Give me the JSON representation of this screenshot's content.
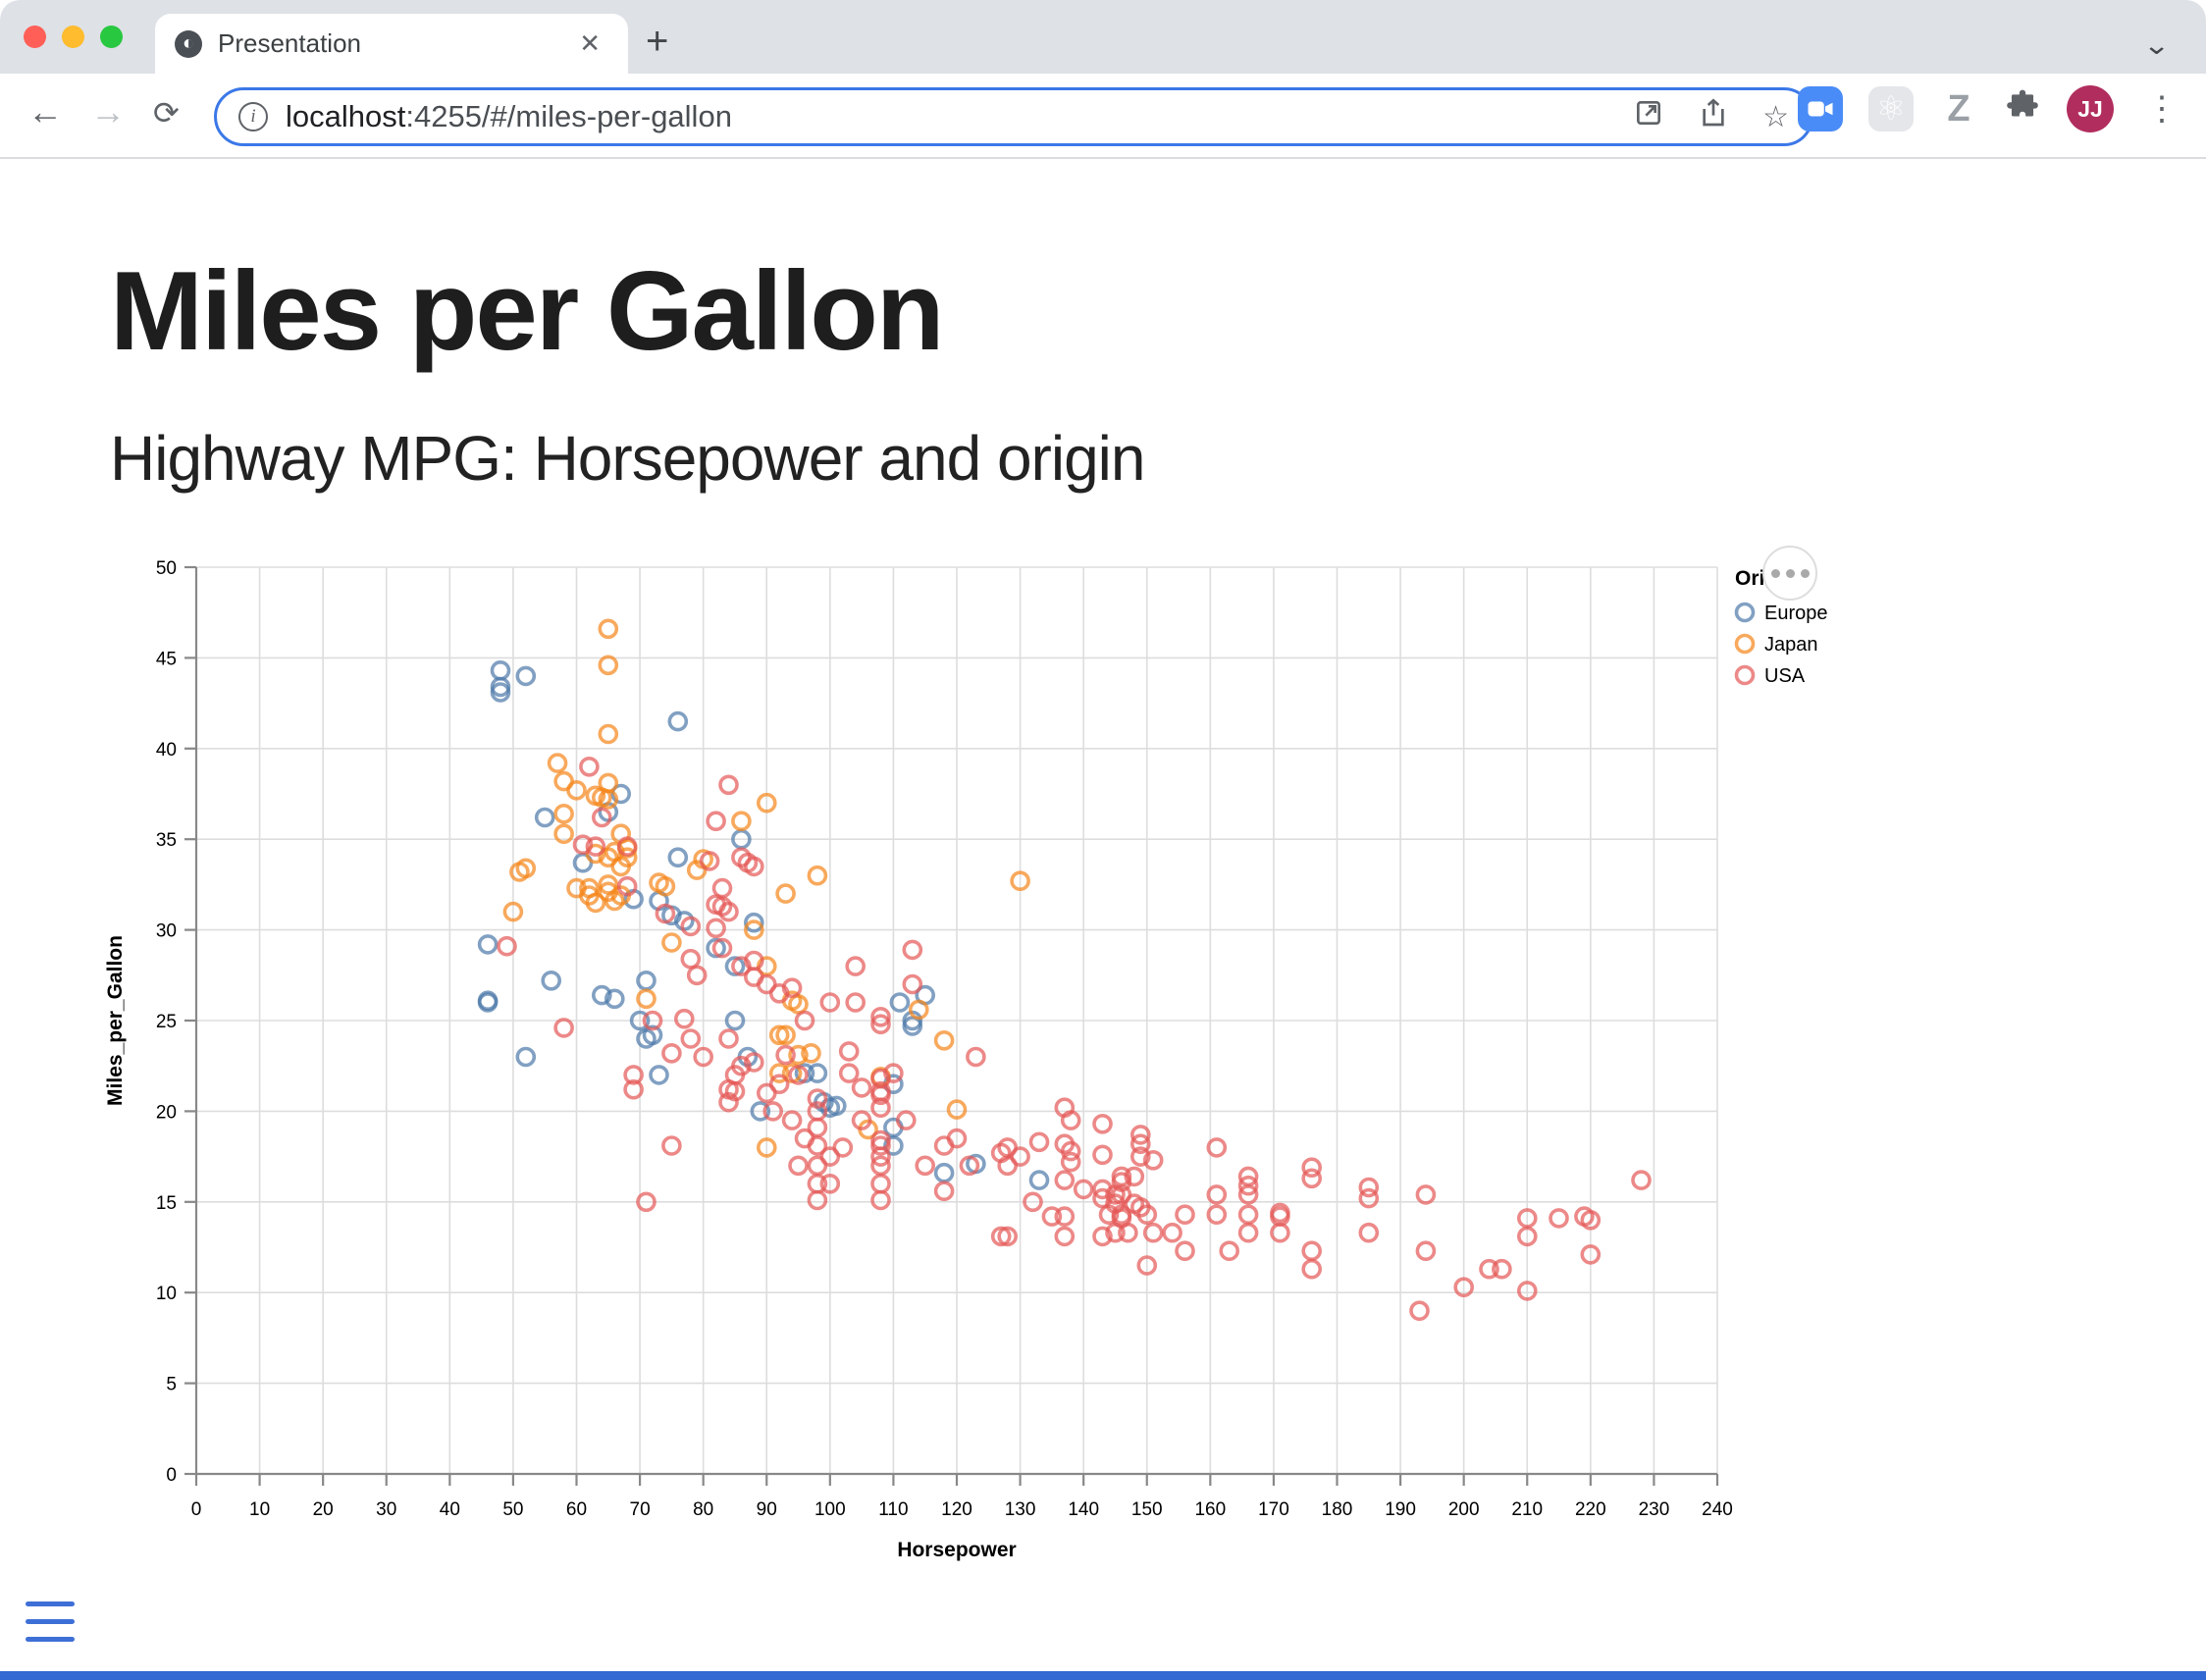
{
  "browser": {
    "traffic_lights": [
      "close",
      "minimize",
      "zoom"
    ],
    "tab": {
      "title": "Presentation",
      "favicon": "globe-icon",
      "close_label": "✕"
    },
    "new_tab_label": "+",
    "strip_chevron": "⌄",
    "nav": {
      "back": "←",
      "forward": "→",
      "reload": "⟳"
    },
    "url": {
      "host": "localhost",
      "rest": ":4255/#/miles-per-gallon",
      "info_glyph": "i"
    },
    "pill_icons": [
      "open-in-window-icon",
      "share-icon",
      "bookmark-star-icon"
    ],
    "star_glyph": "☆",
    "ext_icons": [
      "zoom-camera-icon",
      "react-atom-icon",
      "z-extension-icon",
      "puzzle-icon",
      "avatar",
      "kebab-menu-icon"
    ],
    "react_glyph": "⚛",
    "z_label": "Z",
    "avatar_initials": "JJ",
    "kebab_glyph": "⋮"
  },
  "page": {
    "title": "Miles per Gallon",
    "subtitle": "Highway MPG: Horsepower and origin"
  },
  "chart_data": {
    "type": "scatter",
    "xlabel": "Horsepower",
    "ylabel": "Miles_per_Gallon",
    "xlim": [
      0,
      240
    ],
    "ylim": [
      0,
      50
    ],
    "x_ticks": [
      0,
      10,
      20,
      30,
      40,
      50,
      60,
      70,
      80,
      90,
      100,
      110,
      120,
      130,
      140,
      150,
      160,
      170,
      180,
      190,
      200,
      210,
      220,
      230,
      240
    ],
    "y_ticks": [
      0,
      5,
      10,
      15,
      20,
      25,
      30,
      35,
      40,
      45,
      50
    ],
    "grid": true,
    "marker": {
      "shape": "open-circle",
      "radius": 8.5,
      "stroke_width": 3.6,
      "opacity": 0.7
    },
    "legend": {
      "title": "Origin",
      "position": "right"
    },
    "series": [
      {
        "name": "Europe",
        "color": "#4c78a8",
        "points": [
          [
            48,
            44.3
          ],
          [
            48,
            43.4
          ],
          [
            48,
            43.1
          ],
          [
            52,
            44.0
          ],
          [
            76,
            41.5
          ],
          [
            67,
            37.5
          ],
          [
            65,
            36.5
          ],
          [
            55,
            36.2
          ],
          [
            76,
            34.0
          ],
          [
            86,
            35.0
          ],
          [
            69,
            31.7
          ],
          [
            73,
            31.6
          ],
          [
            75,
            30.8
          ],
          [
            77,
            30.5
          ],
          [
            61,
            33.7
          ],
          [
            46,
            29.2
          ],
          [
            46,
            26.1
          ],
          [
            46,
            26.0
          ],
          [
            56,
            27.2
          ],
          [
            71,
            27.2
          ],
          [
            64,
            26.4
          ],
          [
            66,
            26.2
          ],
          [
            82,
            29.0
          ],
          [
            85,
            28.0
          ],
          [
            88,
            30.4
          ],
          [
            52,
            23.0
          ],
          [
            70,
            25.0
          ],
          [
            72,
            24.2
          ],
          [
            71,
            24.0
          ],
          [
            73,
            22.0
          ],
          [
            85,
            25.0
          ],
          [
            87,
            23.0
          ],
          [
            96,
            22.1
          ],
          [
            98,
            22.1
          ],
          [
            100,
            20.2
          ],
          [
            89,
            20.0
          ],
          [
            110,
            21.5
          ],
          [
            99,
            20.5
          ],
          [
            101,
            20.3
          ],
          [
            110,
            19.1
          ],
          [
            110,
            18.1
          ],
          [
            113,
            24.7
          ],
          [
            111,
            26.0
          ],
          [
            113,
            25.0
          ],
          [
            115,
            26.4
          ],
          [
            118,
            16.6
          ],
          [
            123,
            17.1
          ],
          [
            133,
            16.2
          ]
        ]
      },
      {
        "name": "Japan",
        "color": "#f58518",
        "points": [
          [
            65,
            46.6
          ],
          [
            65,
            44.6
          ],
          [
            65,
            40.8
          ],
          [
            57,
            39.2
          ],
          [
            58,
            38.2
          ],
          [
            60,
            37.7
          ],
          [
            65,
            38.1
          ],
          [
            65,
            37.2
          ],
          [
            63,
            37.4
          ],
          [
            64,
            37.3
          ],
          [
            90,
            37.0
          ],
          [
            86,
            36.0
          ],
          [
            58,
            36.4
          ],
          [
            58,
            35.3
          ],
          [
            67,
            35.3
          ],
          [
            63,
            34.2
          ],
          [
            65,
            34.0
          ],
          [
            66,
            34.3
          ],
          [
            68,
            34.5
          ],
          [
            68,
            34.0
          ],
          [
            67,
            33.5
          ],
          [
            80,
            33.9
          ],
          [
            79,
            33.3
          ],
          [
            51,
            33.2
          ],
          [
            52,
            33.4
          ],
          [
            98,
            33.0
          ],
          [
            93,
            32.0
          ],
          [
            130,
            32.7
          ],
          [
            60,
            32.3
          ],
          [
            62,
            32.3
          ],
          [
            62,
            31.9
          ],
          [
            63,
            31.5
          ],
          [
            65,
            32.5
          ],
          [
            65,
            32.1
          ],
          [
            66,
            31.6
          ],
          [
            67,
            31.9
          ],
          [
            73,
            32.6
          ],
          [
            74,
            32.4
          ],
          [
            50,
            31.0
          ],
          [
            88,
            30.0
          ],
          [
            75,
            29.3
          ],
          [
            90,
            28.0
          ],
          [
            71,
            26.2
          ],
          [
            94,
            26.1
          ],
          [
            95,
            25.9
          ],
          [
            92,
            24.2
          ],
          [
            93,
            24.2
          ],
          [
            95,
            23.1
          ],
          [
            92,
            22.1
          ],
          [
            94,
            22.1
          ],
          [
            108,
            21.9
          ],
          [
            90,
            18.0
          ],
          [
            106,
            19.0
          ],
          [
            114,
            25.6
          ],
          [
            118,
            23.9
          ],
          [
            120,
            20.1
          ],
          [
            97,
            23.2
          ]
        ]
      },
      {
        "name": "USA",
        "color": "#e45756",
        "points": [
          [
            62,
            39.0
          ],
          [
            84,
            38.0
          ],
          [
            82,
            36.0
          ],
          [
            64,
            36.2
          ],
          [
            86,
            34.0
          ],
          [
            88,
            33.5
          ],
          [
            61,
            34.7
          ],
          [
            63,
            34.6
          ],
          [
            68,
            34.6
          ],
          [
            81,
            33.8
          ],
          [
            87,
            33.7
          ],
          [
            68,
            32.4
          ],
          [
            83,
            32.3
          ],
          [
            82,
            31.4
          ],
          [
            83,
            31.3
          ],
          [
            84,
            31.0
          ],
          [
            82,
            30.1
          ],
          [
            74,
            30.9
          ],
          [
            78,
            30.2
          ],
          [
            49,
            29.1
          ],
          [
            83,
            29.0
          ],
          [
            78,
            28.4
          ],
          [
            86,
            28.0
          ],
          [
            88,
            28.3
          ],
          [
            88,
            27.4
          ],
          [
            79,
            27.5
          ],
          [
            94,
            26.8
          ],
          [
            100,
            26.0
          ],
          [
            104,
            28.0
          ],
          [
            104,
            26.0
          ],
          [
            113,
            28.9
          ],
          [
            113,
            27.0
          ],
          [
            108,
            25.2
          ],
          [
            96,
            25.0
          ],
          [
            90,
            27.0
          ],
          [
            92,
            26.5
          ],
          [
            58,
            24.6
          ],
          [
            72,
            25.0
          ],
          [
            77,
            25.1
          ],
          [
            78,
            24.0
          ],
          [
            75,
            23.2
          ],
          [
            80,
            23.0
          ],
          [
            69,
            22.0
          ],
          [
            69,
            21.2
          ],
          [
            75,
            18.1
          ],
          [
            71,
            15.0
          ],
          [
            84,
            24.0
          ],
          [
            85,
            22.0
          ],
          [
            86,
            22.5
          ],
          [
            88,
            22.7
          ],
          [
            93,
            23.1
          ],
          [
            95,
            22.0
          ],
          [
            103,
            23.3
          ],
          [
            103,
            22.1
          ],
          [
            110,
            22.1
          ],
          [
            105,
            21.3
          ],
          [
            84,
            21.2
          ],
          [
            85,
            21.1
          ],
          [
            84,
            20.5
          ],
          [
            90,
            21.0
          ],
          [
            92,
            21.5
          ],
          [
            123,
            23.0
          ],
          [
            108,
            24.8
          ],
          [
            108,
            21.8
          ],
          [
            98,
            20.7
          ],
          [
            98,
            20.0
          ],
          [
            98,
            19.1
          ],
          [
            98,
            18.1
          ],
          [
            98,
            17.0
          ],
          [
            98,
            16.0
          ],
          [
            98,
            15.1
          ],
          [
            108,
            21.1
          ],
          [
            108,
            20.9
          ],
          [
            108,
            20.2
          ],
          [
            108,
            18.4
          ],
          [
            108,
            18.1
          ],
          [
            108,
            17.5
          ],
          [
            108,
            17.0
          ],
          [
            108,
            16.0
          ],
          [
            108,
            15.1
          ],
          [
            118,
            18.1
          ],
          [
            118,
            15.6
          ],
          [
            127,
            17.7
          ],
          [
            128,
            18.0
          ],
          [
            128,
            17.0
          ],
          [
            127,
            13.1
          ],
          [
            128,
            13.1
          ],
          [
            135,
            14.2
          ],
          [
            137,
            14.2
          ],
          [
            137,
            13.1
          ],
          [
            143,
            13.1
          ],
          [
            137,
            20.2
          ],
          [
            138,
            19.5
          ],
          [
            143,
            19.3
          ],
          [
            143,
            17.6
          ],
          [
            146,
            16.1
          ],
          [
            146,
            14.1
          ],
          [
            133,
            18.3
          ],
          [
            137,
            18.2
          ],
          [
            138,
            17.8
          ],
          [
            138,
            17.2
          ],
          [
            137,
            16.2
          ],
          [
            140,
            15.7
          ],
          [
            143,
            15.7
          ],
          [
            143,
            15.2
          ],
          [
            145,
            14.9
          ],
          [
            146,
            16.4
          ],
          [
            148,
            16.4
          ],
          [
            145,
            15.4
          ],
          [
            146,
            15.4
          ],
          [
            144,
            14.3
          ],
          [
            146,
            14.3
          ],
          [
            148,
            14.9
          ],
          [
            149,
            14.7
          ],
          [
            150,
            14.3
          ],
          [
            145,
            13.3
          ],
          [
            147,
            13.3
          ],
          [
            151,
            13.3
          ],
          [
            154,
            13.3
          ],
          [
            156,
            14.3
          ],
          [
            156,
            12.3
          ],
          [
            150,
            11.5
          ],
          [
            149,
            18.7
          ],
          [
            149,
            18.2
          ],
          [
            149,
            17.5
          ],
          [
            151,
            17.3
          ],
          [
            161,
            18.0
          ],
          [
            161,
            15.4
          ],
          [
            161,
            14.3
          ],
          [
            163,
            12.3
          ],
          [
            166,
            16.4
          ],
          [
            166,
            15.9
          ],
          [
            166,
            15.4
          ],
          [
            166,
            14.3
          ],
          [
            166,
            13.3
          ],
          [
            171,
            14.4
          ],
          [
            171,
            14.2
          ],
          [
            171,
            13.3
          ],
          [
            176,
            16.9
          ],
          [
            176,
            16.3
          ],
          [
            176,
            12.3
          ],
          [
            176,
            11.3
          ],
          [
            185,
            15.8
          ],
          [
            185,
            15.2
          ],
          [
            185,
            13.3
          ],
          [
            193,
            9.0
          ],
          [
            194,
            15.4
          ],
          [
            194,
            12.3
          ],
          [
            200,
            10.3
          ],
          [
            204,
            11.3
          ],
          [
            206,
            11.3
          ],
          [
            210,
            14.1
          ],
          [
            215,
            14.1
          ],
          [
            219,
            14.2
          ],
          [
            220,
            14.0
          ],
          [
            210,
            13.1
          ],
          [
            220,
            12.1
          ],
          [
            210,
            10.1
          ],
          [
            228,
            16.2
          ],
          [
            91,
            20.0
          ],
          [
            94,
            19.5
          ],
          [
            96,
            18.5
          ],
          [
            100,
            17.5
          ],
          [
            102,
            18.0
          ],
          [
            95,
            17.0
          ],
          [
            100,
            16.0
          ],
          [
            105,
            19.5
          ],
          [
            112,
            19.5
          ],
          [
            115,
            17.0
          ],
          [
            120,
            18.5
          ],
          [
            122,
            17.0
          ],
          [
            130,
            17.5
          ],
          [
            132,
            15.0
          ]
        ]
      }
    ],
    "colors": {
      "grid": "#dddddd",
      "axis": "#888888",
      "label": "#000000"
    }
  },
  "controls": {
    "menu": "hamburger",
    "progress_color": "#3269d2"
  }
}
